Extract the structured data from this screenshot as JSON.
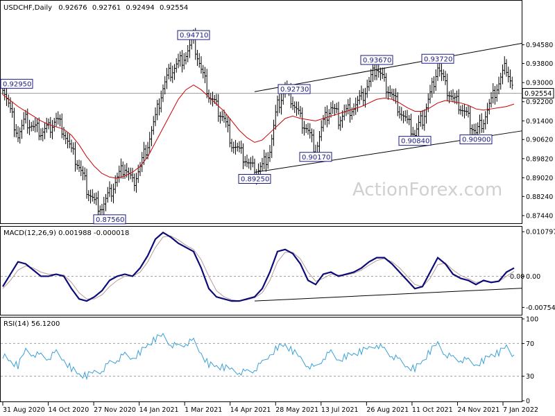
{
  "chart_data": [
    {
      "type": "ohlc",
      "panel": "price",
      "title": "USDCHF,Daily",
      "ohlc_header": [
        "0.92676",
        "0.92761",
        "0.92494",
        "0.92554"
      ],
      "current_price": 0.92554,
      "current_price_label": "0.92554",
      "ylim": [
        0.8712,
        0.9622
      ],
      "yticks": [
        "0.94580",
        "0.93800",
        "0.93000",
        "0.92200",
        "0.91400",
        "0.90620",
        "0.89820",
        "0.89020",
        "0.88240",
        "0.87440"
      ],
      "xticks": [
        "31 Aug 2020",
        "14 Oct 2020",
        "27 Nov 2020",
        "14 Jan 2021",
        "1 Mar 2021",
        "14 Apr 2021",
        "28 May 2021",
        "13 Jul 2021",
        "26 Aug 2021",
        "11 Oct 2021",
        "24 Nov 2021",
        "7 Jan 2022"
      ],
      "close_series_approx": [
        0.9295,
        0.918,
        0.908,
        0.914,
        0.911,
        0.9095,
        0.911,
        0.915,
        0.91,
        0.901,
        0.895,
        0.886,
        0.88,
        0.878,
        0.883,
        0.89,
        0.895,
        0.888,
        0.895,
        0.905,
        0.915,
        0.928,
        0.935,
        0.938,
        0.942,
        0.9471,
        0.935,
        0.925,
        0.92,
        0.915,
        0.905,
        0.901,
        0.897,
        0.8925,
        0.895,
        0.902,
        0.92,
        0.9273,
        0.922,
        0.915,
        0.91,
        0.9017,
        0.913,
        0.92,
        0.915,
        0.918,
        0.92,
        0.923,
        0.93,
        0.9367,
        0.93,
        0.925,
        0.919,
        0.913,
        0.9084,
        0.915,
        0.925,
        0.9372,
        0.928,
        0.923,
        0.92,
        0.915,
        0.909,
        0.915,
        0.922,
        0.93,
        0.937,
        0.9255
      ],
      "ma_series_approx": [
        0.925,
        0.9225,
        0.92,
        0.918,
        0.916,
        0.914,
        0.9125,
        0.9115,
        0.9105,
        0.908,
        0.904,
        0.899,
        0.895,
        0.892,
        0.8905,
        0.89,
        0.891,
        0.8925,
        0.895,
        0.899,
        0.905,
        0.911,
        0.917,
        0.923,
        0.927,
        0.929,
        0.927,
        0.924,
        0.921,
        0.918,
        0.914,
        0.91,
        0.907,
        0.905,
        0.906,
        0.909,
        0.912,
        0.915,
        0.916,
        0.915,
        0.9145,
        0.914,
        0.915,
        0.916,
        0.917,
        0.918,
        0.919,
        0.92,
        0.9215,
        0.923,
        0.9235,
        0.923,
        0.9215,
        0.9195,
        0.918,
        0.918,
        0.9195,
        0.9215,
        0.9225,
        0.922,
        0.9215,
        0.9205,
        0.919,
        0.9185,
        0.919,
        0.9195,
        0.92,
        0.921
      ],
      "annotations": [
        {
          "label": "0.92950",
          "value": 0.9295,
          "i": 0
        },
        {
          "label": "0.87560",
          "value": 0.8756,
          "i": 14
        },
        {
          "label": "0.94710",
          "value": 0.9471,
          "i": 25
        },
        {
          "label": "0.89250",
          "value": 0.8925,
          "i": 33
        },
        {
          "label": "0.92730",
          "value": 0.9273,
          "i": 37
        },
        {
          "label": "0.90170",
          "value": 0.9017,
          "i": 41
        },
        {
          "label": "0.93670",
          "value": 0.9367,
          "i": 49
        },
        {
          "label": "0.90840",
          "value": 0.9084,
          "i": 54
        },
        {
          "label": "0.93720",
          "value": 0.9372,
          "i": 57
        },
        {
          "label": "0.90900",
          "value": 0.909,
          "i": 62
        }
      ],
      "trendlines": [
        {
          "from": {
            "i": 33,
            "value": 0.8925
          },
          "to": {
            "i": 68,
            "value": 0.9098
          }
        },
        {
          "from": {
            "i": 33,
            "value": 0.9262
          },
          "to": {
            "i": 68,
            "value": 0.9464
          }
        }
      ],
      "watermark": "ActionForex.com"
    },
    {
      "type": "line",
      "panel": "macd",
      "title": "MACD(12,26,9) 0.001988 -0.000018",
      "yticks": [
        "0.010797",
        "0.00",
        "-0.007548"
      ],
      "zero_label": "0.00",
      "ylim": [
        -0.009,
        0.0115
      ],
      "macd_series_approx": [
        -0.0025,
        0.0005,
        0.0035,
        0.003,
        0.0015,
        0.0,
        0.0,
        0.0005,
        0.0,
        -0.003,
        -0.0055,
        -0.006,
        -0.005,
        -0.0035,
        -0.001,
        0.0,
        0.0005,
        0.0,
        0.002,
        0.005,
        0.009,
        0.0106,
        0.0095,
        0.008,
        0.007,
        0.006,
        0.002,
        -0.003,
        -0.005,
        -0.0055,
        -0.006,
        -0.006,
        -0.0055,
        -0.005,
        -0.003,
        0.001,
        0.006,
        0.0065,
        0.0055,
        0.003,
        -0.001,
        -0.002,
        0.0005,
        0.001,
        0.0,
        0.0005,
        0.001,
        0.002,
        0.0035,
        0.0045,
        0.0045,
        0.003,
        0.001,
        -0.001,
        -0.003,
        -0.0025,
        0.001,
        0.0045,
        0.003,
        0.0005,
        -0.0005,
        -0.001,
        -0.002,
        -0.001,
        -0.0015,
        -0.0012,
        0.001,
        0.002
      ],
      "signal_series_approx": [
        -0.003,
        -0.001,
        0.0015,
        0.0025,
        0.002,
        0.001,
        0.0005,
        0.0005,
        0.0003,
        -0.0015,
        -0.004,
        -0.0055,
        -0.0055,
        -0.0045,
        -0.0025,
        -0.001,
        0.0,
        0.0,
        0.001,
        0.0035,
        0.007,
        0.0095,
        0.0098,
        0.0088,
        0.0075,
        0.0065,
        0.004,
        0.0,
        -0.0035,
        -0.005,
        -0.0057,
        -0.006,
        -0.0057,
        -0.0052,
        -0.004,
        -0.001,
        0.0035,
        0.0058,
        0.0058,
        0.0042,
        0.001,
        -0.0012,
        -0.0005,
        0.0005,
        0.0003,
        0.0003,
        0.0007,
        0.0015,
        0.0027,
        0.0038,
        0.0043,
        0.0035,
        0.002,
        0.0,
        -0.002,
        -0.0025,
        -0.0005,
        0.0028,
        0.0032,
        0.0015,
        0.0002,
        -0.0006,
        -0.0015,
        -0.0012,
        -0.0014,
        -0.0013,
        0.0,
        0.0012
      ],
      "trendline": {
        "from": {
          "i": 33,
          "value": -0.006
        },
        "to": {
          "i": 68,
          "value": -0.0029
        }
      }
    },
    {
      "type": "line",
      "panel": "rsi",
      "title": "RSI(14) 56.1200",
      "yticks": [
        "100",
        "70",
        "30",
        "0"
      ],
      "ylim": [
        0,
        100
      ],
      "levels": [
        70,
        30
      ],
      "rsi_series_approx": [
        56,
        48,
        42,
        62,
        58,
        55,
        52,
        58,
        50,
        40,
        32,
        30,
        35,
        38,
        46,
        50,
        55,
        52,
        60,
        68,
        75,
        80,
        70,
        66,
        70,
        72,
        58,
        45,
        42,
        40,
        38,
        36,
        35,
        38,
        45,
        56,
        66,
        68,
        60,
        52,
        44,
        40,
        52,
        58,
        50,
        55,
        57,
        60,
        64,
        70,
        62,
        55,
        48,
        42,
        40,
        48,
        60,
        70,
        58,
        52,
        50,
        48,
        44,
        50,
        56,
        58,
        66,
        56
      ]
    }
  ]
}
